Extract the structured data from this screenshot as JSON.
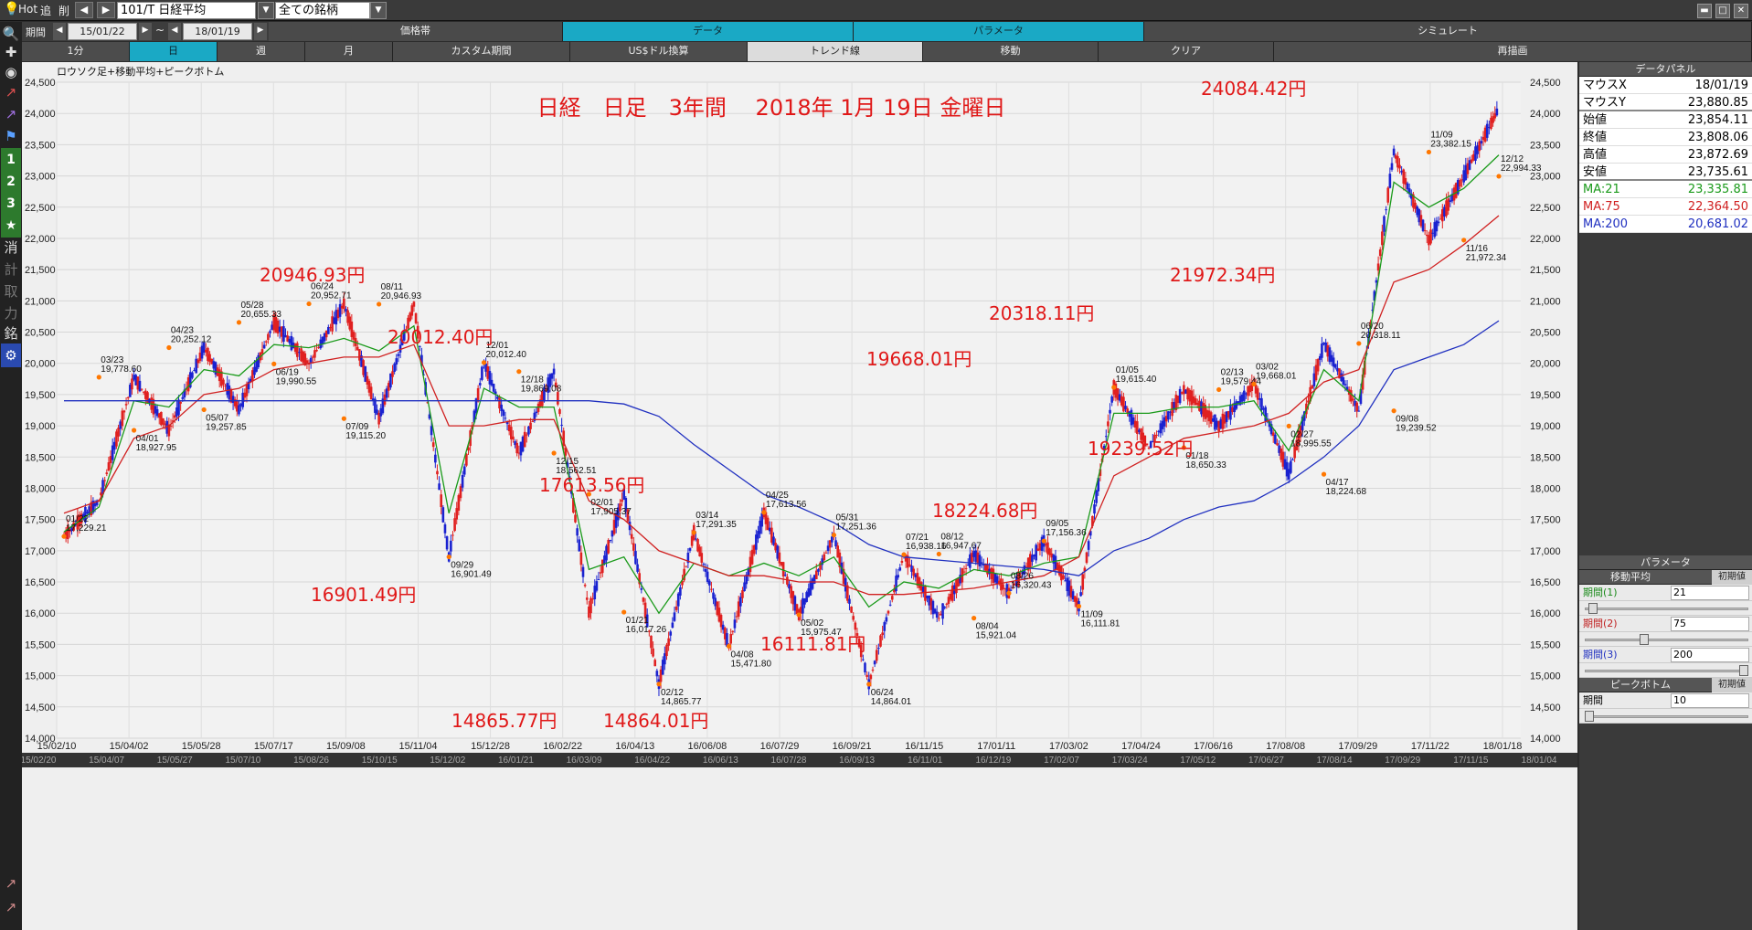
{
  "toolbar": {
    "hot": "Hot",
    "tsui": "追",
    "saku": "削",
    "symbol": "101/T 日経平均",
    "filter": "全ての銘柄",
    "period_label": "期間",
    "date_from": "15/01/22",
    "tilde": "~",
    "date_to": "18/01/19",
    "tabs": [
      "価格帯",
      "データ",
      "パラメータ",
      "シミュレート"
    ],
    "timeframes": [
      "1分",
      "日",
      "週",
      "月",
      "カスタム期間",
      "US$ドル換算",
      "トレンド線",
      "移動",
      "クリア",
      "再描画"
    ]
  },
  "rail": {
    "b1": "1",
    "b2": "2",
    "b3": "3",
    "star": "★",
    "kesu": "消",
    "kei": "計",
    "tori": "取",
    "chikara": "力",
    "mei": "銘"
  },
  "chart": {
    "indicator_label": "ロウソク足+移動平均+ピークボトム",
    "title": "日経　日足　3年間　 2018年 1月 19日 金曜日",
    "y_ticks": [
      "24,500",
      "24,000",
      "23,500",
      "23,000",
      "22,500",
      "22,000",
      "21,500",
      "21,000",
      "20,500",
      "20,000",
      "19,500",
      "19,000",
      "18,500",
      "18,000",
      "17,500",
      "17,000",
      "16,500",
      "16,000",
      "15,500",
      "15,000",
      "14,500",
      "14,000"
    ],
    "x_ticks": [
      "15/02/10",
      "15/04/02",
      "15/05/28",
      "15/07/17",
      "15/09/08",
      "15/11/04",
      "15/12/28",
      "16/02/22",
      "16/04/13",
      "16/06/08",
      "16/07/29",
      "16/09/21",
      "16/11/15",
      "17/01/11",
      "17/03/02",
      "17/04/24",
      "17/06/16",
      "17/08/08",
      "17/09/29",
      "17/11/22",
      "18/01/18"
    ],
    "x_ticks2": [
      "15/02/20",
      "15/04/07",
      "15/05/27",
      "15/07/10",
      "15/08/26",
      "15/10/15",
      "15/12/02",
      "16/01/21",
      "16/03/09",
      "16/04/22",
      "16/06/13",
      "16/07/28",
      "16/09/13",
      "16/11/01",
      "16/12/19",
      "17/02/07",
      "17/03/24",
      "17/05/12",
      "17/06/27",
      "17/08/14",
      "17/09/29",
      "17/11/15",
      "18/01/04"
    ],
    "peaks": [
      {
        "d": "01/22",
        "v": "17,229.21"
      },
      {
        "d": "03/23",
        "v": "19,778.60"
      },
      {
        "d": "04/01",
        "v": "18,927.95"
      },
      {
        "d": "04/23",
        "v": "20,252.12"
      },
      {
        "d": "05/07",
        "v": "19,257.85"
      },
      {
        "d": "05/28",
        "v": "20,655.33"
      },
      {
        "d": "06/19",
        "v": "19,990.55"
      },
      {
        "d": "06/24",
        "v": "20,952.71"
      },
      {
        "d": "07/09",
        "v": "19,115.20"
      },
      {
        "d": "08/11",
        "v": "20,946.93"
      },
      {
        "d": "09/29",
        "v": "16,901.49"
      },
      {
        "d": "12/01",
        "v": "20,012.40"
      },
      {
        "d": "12/18",
        "v": "19,869.08"
      },
      {
        "d": "12/15",
        "v": "18,562.51"
      },
      {
        "d": "02/01",
        "v": "17,905.37"
      },
      {
        "d": "01/21",
        "v": "16,017.26"
      },
      {
        "d": "02/12",
        "v": "14,865.77"
      },
      {
        "d": "03/14",
        "v": "17,291.35"
      },
      {
        "d": "04/08",
        "v": "15,471.80"
      },
      {
        "d": "04/25",
        "v": "17,613.56"
      },
      {
        "d": "05/02",
        "v": "15,975.47"
      },
      {
        "d": "05/31",
        "v": "17,251.36"
      },
      {
        "d": "06/24",
        "v": "14,864.01"
      },
      {
        "d": "07/21",
        "v": "16,938.16"
      },
      {
        "d": "08/12",
        "v": "16,947.67"
      },
      {
        "d": "08/04",
        "v": "15,921.04"
      },
      {
        "d": "08/26",
        "v": "16,320.43"
      },
      {
        "d": "09/05",
        "v": "17,156.36"
      },
      {
        "d": "11/09",
        "v": "16,111.81"
      },
      {
        "d": "01/05",
        "v": "19,615.40"
      },
      {
        "d": "01/18",
        "v": "18,650.33"
      },
      {
        "d": "02/13",
        "v": "19,579.44"
      },
      {
        "d": "03/02",
        "v": "19,668.01"
      },
      {
        "d": "02/27",
        "v": "18,995.55"
      },
      {
        "d": "04/17",
        "v": "18,224.68"
      },
      {
        "d": "06/20",
        "v": "20,318.11"
      },
      {
        "d": "09/08",
        "v": "19,239.52"
      },
      {
        "d": "11/09",
        "v": "23,382.15"
      },
      {
        "d": "11/16",
        "v": "21,972.34"
      },
      {
        "d": "12/12",
        "v": "22,994.33"
      }
    ],
    "callouts": [
      "20946.93円",
      "20012.40円",
      "16901.49円",
      "17613.56円",
      "14865.77円",
      "14864.01円",
      "16111.81円",
      "19668.01円",
      "18224.68円",
      "20318.11円",
      "19239.52円",
      "21972.34円",
      "24084.42円"
    ]
  },
  "panel": {
    "data_title": "データパネル",
    "mouse_x": {
      "k": "マウスX",
      "v": "18/01/19"
    },
    "mouse_y": {
      "k": "マウスY",
      "v": "23,880.85"
    },
    "open": {
      "k": "始値",
      "v": "23,854.11"
    },
    "close": {
      "k": "終値",
      "v": "23,808.06"
    },
    "high": {
      "k": "高値",
      "v": "23,872.69"
    },
    "low": {
      "k": "安値",
      "v": "23,735.61"
    },
    "ma21": {
      "k": "MA:21",
      "v": "23,335.81",
      "color": "#1a9a1a"
    },
    "ma75": {
      "k": "MA:75",
      "v": "22,364.50",
      "color": "#d02020"
    },
    "ma200": {
      "k": "MA:200",
      "v": "20,681.02",
      "color": "#2030c0"
    },
    "param_title": "パラメータ",
    "ma_group": "移動平均",
    "init_btn": "初期値",
    "p1": {
      "k": "期間(1)",
      "v": "21"
    },
    "p2": {
      "k": "期間(2)",
      "v": "75"
    },
    "p3": {
      "k": "期間(3)",
      "v": "200"
    },
    "peak_group": "ピークボトム",
    "p4": {
      "k": "期間",
      "v": "10"
    }
  },
  "chart_data": {
    "type": "line",
    "title": "日経　日足　3年間　 2018年 1月 19日 金曜日",
    "ylim": [
      14000,
      24600
    ],
    "x": [
      "15/01/22",
      "15/02/10",
      "15/03/23",
      "15/04/01",
      "15/04/23",
      "15/05/07",
      "15/05/28",
      "15/06/19",
      "15/06/24",
      "15/07/09",
      "15/08/11",
      "15/09/29",
      "15/12/01",
      "15/12/15",
      "15/12/18",
      "16/01/21",
      "16/02/01",
      "16/02/12",
      "16/03/14",
      "16/04/08",
      "16/04/25",
      "16/05/02",
      "16/05/31",
      "16/06/24",
      "16/07/21",
      "16/08/04",
      "16/08/12",
      "16/08/26",
      "16/09/05",
      "16/11/09",
      "17/01/05",
      "17/01/18",
      "17/02/13",
      "17/02/27",
      "17/03/02",
      "17/04/17",
      "17/06/20",
      "17/09/08",
      "17/11/09",
      "17/11/16",
      "17/12/12",
      "18/01/19"
    ],
    "series": [
      {
        "values": [
          17229.21,
          17800,
          19778.6,
          18927.95,
          20252.12,
          19257.85,
          20655.33,
          19990.55,
          20952.71,
          19115.2,
          20946.93,
          16901.49,
          20012.4,
          18562.51,
          19869.08,
          16017.26,
          17905.37,
          14865.77,
          17291.35,
          15471.8,
          17613.56,
          15975.47,
          17251.36,
          14864.01,
          16938.16,
          15921.04,
          16947.67,
          16320.43,
          17156.36,
          16111.81,
          19615.4,
          18650.33,
          19579.44,
          18995.55,
          19668.01,
          18224.68,
          20318.11,
          19239.52,
          23382.15,
          21972.34,
          22994.33,
          24084.42
        ],
        "color": "#cc2020"
      },
      {
        "name": "MA:21",
        "values": [
          17300,
          17700,
          19400,
          19300,
          19900,
          19800,
          20300,
          20250,
          20400,
          20200,
          20600,
          17600,
          19600,
          19300,
          19300,
          16700,
          16900,
          16000,
          16800,
          16600,
          16800,
          16600,
          16900,
          16100,
          16500,
          16400,
          16700,
          16600,
          16800,
          16900,
          19200,
          19200,
          19300,
          19300,
          19400,
          18600,
          19900,
          19400,
          22900,
          22500,
          22800,
          23335.81
        ],
        "color": "#1a9a1a"
      },
      {
        "name": "MA:75",
        "values": [
          17600,
          17800,
          18800,
          19000,
          19500,
          19600,
          19900,
          20000,
          20100,
          20100,
          20300,
          19000,
          19000,
          19100,
          19100,
          17800,
          17500,
          17000,
          16800,
          16600,
          16600,
          16500,
          16500,
          16300,
          16300,
          16350,
          16400,
          16500,
          16600,
          16900,
          18200,
          18500,
          18800,
          18900,
          19000,
          19200,
          19700,
          19900,
          21300,
          21500,
          21900,
          22364.5
        ],
        "color": "#d02020"
      },
      {
        "name": "MA:200",
        "values": [
          19400,
          19400,
          19400,
          19400,
          19400,
          19400,
          19400,
          19400,
          19400,
          19400,
          19400,
          19400,
          19400,
          19400,
          19400,
          19400,
          19350,
          19150,
          18700,
          18300,
          17900,
          17700,
          17450,
          17100,
          16900,
          16850,
          16800,
          16750,
          16700,
          16600,
          17000,
          17200,
          17500,
          17700,
          17800,
          18100,
          18500,
          19000,
          19900,
          20100,
          20300,
          20681.02
        ],
        "color": "#2030c0"
      }
    ]
  }
}
